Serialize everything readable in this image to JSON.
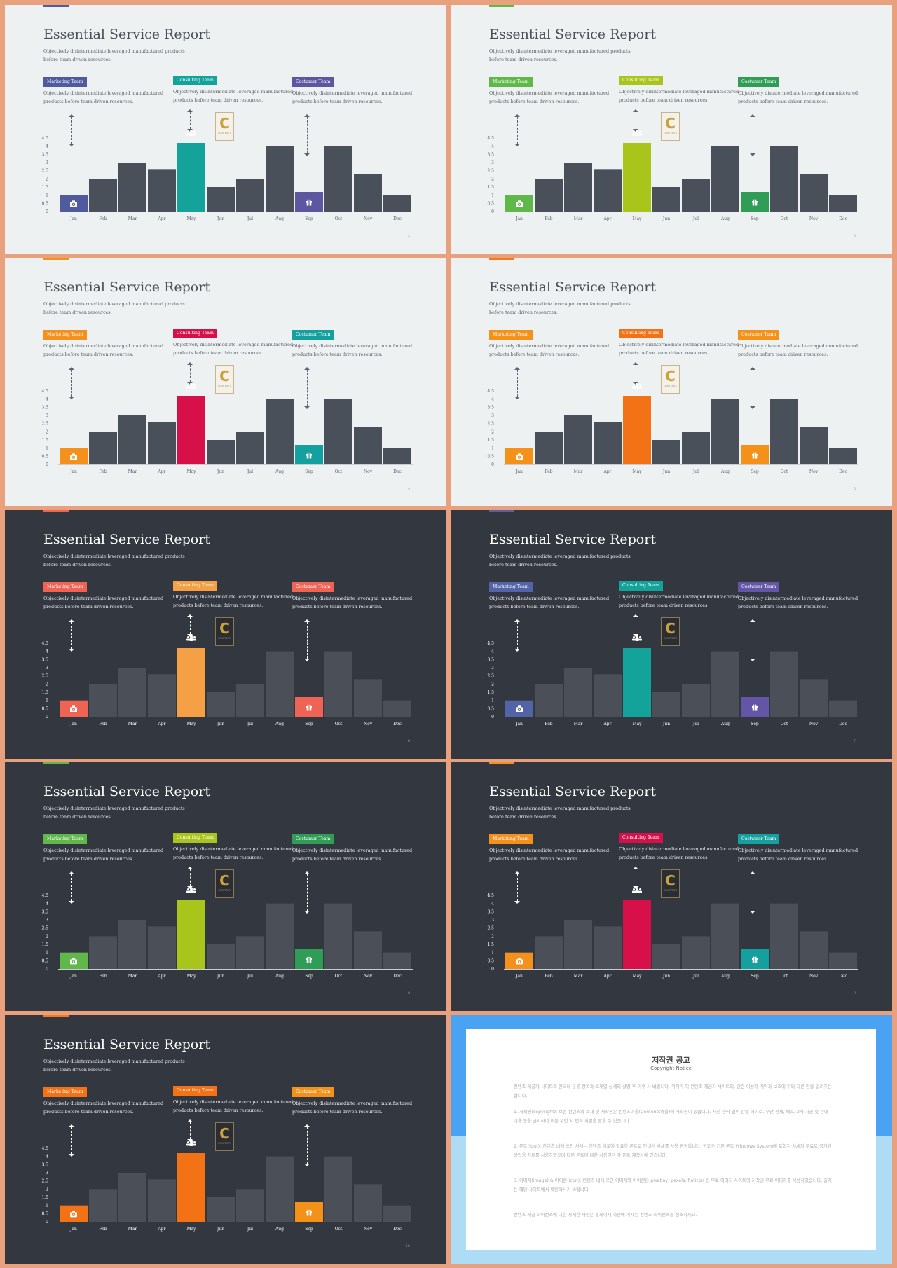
{
  "slides": [
    {
      "theme": "light",
      "accent": "#4f5b9e",
      "c1": "#4f5b9e",
      "c2": "#13a39b",
      "c3": "#5d57a1",
      "page": "2"
    },
    {
      "theme": "light",
      "accent": "#5fb849",
      "c1": "#5fb849",
      "c2": "#a9c41b",
      "c3": "#2f9d55",
      "page": "3"
    },
    {
      "theme": "light",
      "accent": "#f4911c",
      "c1": "#f4911c",
      "c2": "#d7104a",
      "c3": "#14a09e",
      "page": "4"
    },
    {
      "theme": "light",
      "accent": "#f27a1a",
      "c1": "#f49118",
      "c2": "#f47216",
      "c3": "#f49118",
      "page": "5"
    },
    {
      "theme": "dark",
      "accent": "#ef6355",
      "c1": "#ef6355",
      "c2": "#f6a045",
      "c3": "#ef6355",
      "page": "6"
    },
    {
      "theme": "dark",
      "accent": "#5363a8",
      "c1": "#5363a8",
      "c2": "#13a39b",
      "c3": "#6356a6",
      "page": "7"
    },
    {
      "theme": "dark",
      "accent": "#5fb849",
      "c1": "#5fb849",
      "c2": "#a9c41b",
      "c3": "#2f9d55",
      "page": "8"
    },
    {
      "theme": "dark",
      "accent": "#f4911c",
      "c1": "#f4911c",
      "c2": "#d7104a",
      "c3": "#14a09e",
      "page": "9"
    },
    {
      "theme": "dark",
      "accent": "#f27a1a",
      "c1": "#f47216",
      "c2": "#f47216",
      "c3": "#f49118",
      "page": "10"
    }
  ],
  "common": {
    "title": "Essential Service Report",
    "subtitle": "Objectively disintermediate leveraged manufactured products before team driven resources.",
    "teams": [
      "Marketing Team",
      "Consulting Team",
      "Costumer Team"
    ],
    "team_desc": "Objectively disintermediate leveraged manufactured products before team  driven resources.",
    "logo_letter": "C",
    "logo_text": "CONTENTS"
  },
  "chart_data": {
    "type": "bar",
    "categories": [
      "Jan",
      "Feb",
      "Mar",
      "Apr",
      "May",
      "Jun",
      "Jul",
      "Aug",
      "Sep",
      "Oct",
      "Nov",
      "Dec"
    ],
    "values": [
      1,
      2,
      3,
      2.6,
      4.2,
      1.5,
      2,
      4,
      1.2,
      4,
      2.3,
      1
    ],
    "yticks": [
      "0",
      "0.5",
      "1",
      "1.5",
      "2",
      "2.5",
      "3",
      "3.5",
      "4",
      "4.5"
    ],
    "ylim": [
      0,
      4.5
    ],
    "highlighted": {
      "Jan": "camera-icon",
      "May": "team-icon",
      "Sep": "gift-icon"
    },
    "base_color_light": "#4a505a",
    "base_color_dark": "#4a4f58"
  },
  "notice": {
    "title": "저작권 공고",
    "subtitle": "Copyright Notice",
    "paragraphs": [
      "컨텐츠 제공자 사이트의 한국내 분류 항목과 소재별 상세의 설명 후 이후 사 바랍니다. 위치가 이 컨텐츠 제공자 사이트의, 관련 이용자 계약과 보조에 위와 다른 안을 알려주는 합니다.",
      "1. 서작권(copyright): 보존 컨텐츠와 소재 및 저작권은 컨텐츠마을(Contents마을)에 저작권이 있습니다. 사전 승낙 없이 감별 하이로, 무단 전제, 배포, 2차 가공 및 판매 이용 등을 금지하며 이를 위반 시 법적 처벌을 받을 수 있습니다.",
      "2. 폰트(font): 컨텐츠 내에 쓰인 서체는 컨텐츠 배포에 필요한 폰트로 안내된 서체를 사용 권장합니다. 윈도우 기본 폰트 Windows System에 포함된 서체와 무료로 공개된 상업용 폰트를 사용하였으며 다른 폰트에 대한 사용권은 각 폰트 제작사에 있습니다.",
      "3. 이미지(image) & 아이콘(icon): 컨텐츠 내에 쓰인 이미지와 아이콘은 pixabay, pexels, flaticon 등 무료 이미지 사이트의 저작권 무료 이미지를 사용하였습니다. 출처는 해당 사이트에서 확인하시기 바랍니다.",
      "컨텐츠 제공 라이선스에 대한 자세한 사항은 홈페이지 하단에 게재된 컨텐츠 라이선스를 참조하세요."
    ]
  }
}
